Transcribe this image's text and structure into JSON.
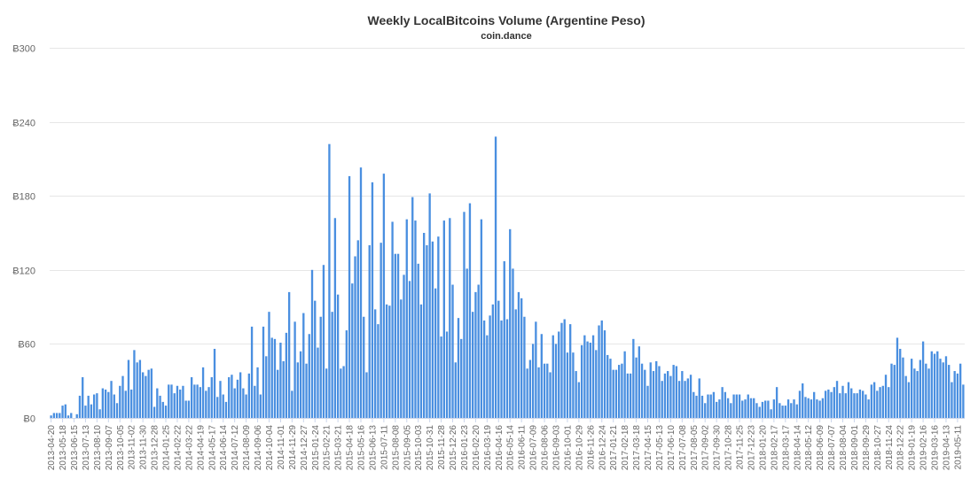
{
  "chart_data": {
    "type": "bar",
    "title": "Weekly LocalBitcoins Volume (Argentine Peso)",
    "subtitle": "coin.dance",
    "xlabel": "",
    "ylabel": "",
    "ylim": [
      0,
      300
    ],
    "yticks": [
      "Ƀ0",
      "Ƀ60",
      "Ƀ120",
      "Ƀ180",
      "Ƀ240",
      "Ƀ300"
    ],
    "ytick_values": [
      0,
      60,
      120,
      180,
      240,
      300
    ],
    "grid": true,
    "legend": "none",
    "bar_color": "#4a8fe0",
    "x_tick_labels": [
      "2013-04-20",
      "2013-05-18",
      "2013-06-15",
      "2013-07-13",
      "2013-08-10",
      "2013-09-07",
      "2013-10-05",
      "2013-11-02",
      "2013-11-30",
      "2013-12-28",
      "2014-01-25",
      "2014-02-22",
      "2014-03-22",
      "2014-04-19",
      "2014-05-17",
      "2014-06-14",
      "2014-07-12",
      "2014-08-09",
      "2014-09-06",
      "2014-10-04",
      "2014-11-01",
      "2014-11-29",
      "2014-12-27",
      "2015-01-24",
      "2015-02-21",
      "2015-03-21",
      "2015-04-18",
      "2015-05-16",
      "2015-06-13",
      "2015-07-11",
      "2015-08-08",
      "2015-09-05",
      "2015-10-03",
      "2015-10-31",
      "2015-11-28",
      "2015-12-26",
      "2016-01-23",
      "2016-02-20",
      "2016-03-19",
      "2016-04-16",
      "2016-05-14",
      "2016-06-11",
      "2016-07-09",
      "2016-08-06",
      "2016-09-03",
      "2016-10-01",
      "2016-10-29",
      "2016-11-26",
      "2016-12-24",
      "2017-01-21",
      "2017-02-18",
      "2017-03-18",
      "2017-04-15",
      "2017-05-13",
      "2017-06-10",
      "2017-07-08",
      "2017-08-05",
      "2017-09-02",
      "2017-09-30",
      "2017-10-28",
      "2017-11-25",
      "2017-12-23",
      "2018-01-20",
      "2018-02-17",
      "2018-03-17",
      "2018-04-14",
      "2018-05-12",
      "2018-06-09",
      "2018-07-07",
      "2018-08-04",
      "2018-09-01",
      "2018-09-29",
      "2018-10-27",
      "2018-11-24",
      "2018-12-22",
      "2019-01-19",
      "2019-02-16",
      "2019-03-16",
      "2019-04-13",
      "2019-05-11"
    ],
    "values": [
      2,
      4,
      4,
      4,
      10,
      11,
      2,
      4,
      0,
      3,
      18,
      33,
      10,
      18,
      11,
      19,
      20,
      7,
      24,
      23,
      21,
      30,
      19,
      12,
      26,
      34,
      22,
      47,
      23,
      55,
      45,
      47,
      37,
      34,
      39,
      40,
      9,
      24,
      18,
      13,
      10,
      27,
      27,
      20,
      26,
      23,
      26,
      14,
      14,
      33,
      27,
      27,
      25,
      41,
      22,
      25,
      33,
      56,
      17,
      30,
      19,
      13,
      33,
      35,
      24,
      31,
      37,
      24,
      19,
      36,
      74,
      26,
      41,
      19,
      74,
      50,
      86,
      65,
      64,
      39,
      61,
      46,
      69,
      102,
      22,
      78,
      45,
      54,
      85,
      44,
      68,
      120,
      95,
      57,
      82,
      124,
      40,
      222,
      86,
      162,
      100,
      40,
      42,
      71,
      196,
      109,
      131,
      144,
      203,
      82,
      37,
      140,
      191,
      88,
      76,
      142,
      198,
      92,
      91,
      159,
      133,
      133,
      96,
      116,
      161,
      111,
      179,
      160,
      125,
      92,
      150,
      140,
      182,
      143,
      105,
      147,
      66,
      160,
      70,
      162,
      108,
      45,
      81,
      64,
      167,
      121,
      174,
      86,
      102,
      108,
      161,
      79,
      67,
      83,
      92,
      228,
      95,
      79,
      127,
      80,
      153,
      121,
      88,
      102,
      97,
      82,
      40,
      47,
      60,
      78,
      41,
      68,
      44,
      44,
      37,
      67,
      60,
      70,
      77,
      80,
      53,
      76,
      53,
      38,
      29,
      59,
      67,
      62,
      61,
      67,
      55,
      75,
      79,
      71,
      51,
      48,
      39,
      39,
      43,
      44,
      54,
      36,
      36,
      64,
      49,
      58,
      44,
      39,
      26,
      45,
      38,
      46,
      42,
      30,
      36,
      38,
      34,
      43,
      42,
      30,
      38,
      30,
      32,
      35,
      21,
      18,
      32,
      18,
      12,
      19,
      19,
      21,
      13,
      15,
      25,
      21,
      16,
      12,
      19,
      19,
      19,
      14,
      15,
      19,
      16,
      16,
      12,
      9,
      13,
      14,
      14,
      7,
      15,
      25,
      12,
      10,
      10,
      15,
      12,
      15,
      11,
      22,
      28,
      17,
      16,
      15,
      21,
      15,
      14,
      16,
      22,
      23,
      21,
      25,
      30,
      20,
      26,
      20,
      29,
      24,
      20,
      20,
      23,
      22,
      19,
      15,
      27,
      29,
      22,
      25,
      26,
      35,
      25,
      44,
      43,
      65,
      56,
      49,
      34,
      29,
      48,
      40,
      38,
      47,
      62,
      44,
      40,
      54,
      52,
      54,
      48,
      45,
      50,
      43,
      29,
      38,
      36,
      44,
      27
    ]
  }
}
